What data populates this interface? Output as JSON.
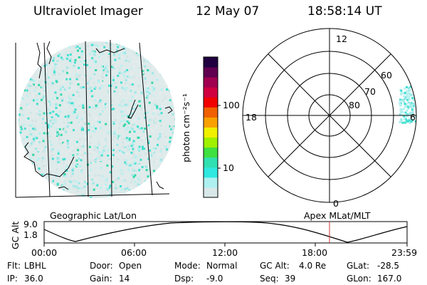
{
  "header": {
    "title": "Ultraviolet Imager",
    "date": "12 May 07",
    "time": "18:58:14 UT"
  },
  "left_panel": {
    "caption": "Geographic Lat/Lon"
  },
  "right_panel": {
    "caption": "Apex MLat/MLT",
    "mlt_labels": {
      "top": "12",
      "left": "18",
      "right": "6",
      "bottom": "0"
    },
    "mlat_labels": [
      "60",
      "70",
      "80"
    ]
  },
  "colorbar": {
    "unit_label": "photon cm⁻²s⁻¹",
    "scale": "log",
    "ticks": [
      "100",
      "10"
    ],
    "colors": [
      "#d8e8e8",
      "#aef0f0",
      "#30e8e0",
      "#30e0b0",
      "#40e040",
      "#a0f000",
      "#f0f000",
      "#f8a000",
      "#f06000",
      "#f00000",
      "#d00040",
      "#a00050",
      "#600050",
      "#200040"
    ]
  },
  "altitude_plot": {
    "ylabel": "GC Alt",
    "yticks": [
      "9.0",
      "1.8"
    ],
    "xticks": [
      "00:00",
      "06:00",
      "12:00",
      "18:00",
      "23:59"
    ],
    "current_marker_color": "#d03030"
  },
  "status": {
    "row1": [
      {
        "label": "Flt:",
        "value": "LBHL"
      },
      {
        "label": "Door:",
        "value": "Open"
      },
      {
        "label": "Mode:",
        "value": "Normal"
      },
      {
        "label": "GC Alt:",
        "value": "4.0 Re"
      },
      {
        "label": "GLat:",
        "value": "-28.5"
      }
    ],
    "row2": [
      {
        "label": "IP:",
        "value": "36.0"
      },
      {
        "label": "Gain:",
        "value": "14"
      },
      {
        "label": "Dsp:",
        "value": "-9.0"
      },
      {
        "label": "Seq:",
        "value": "39"
      },
      {
        "label": "GLon:",
        "value": "167.0"
      }
    ]
  }
}
